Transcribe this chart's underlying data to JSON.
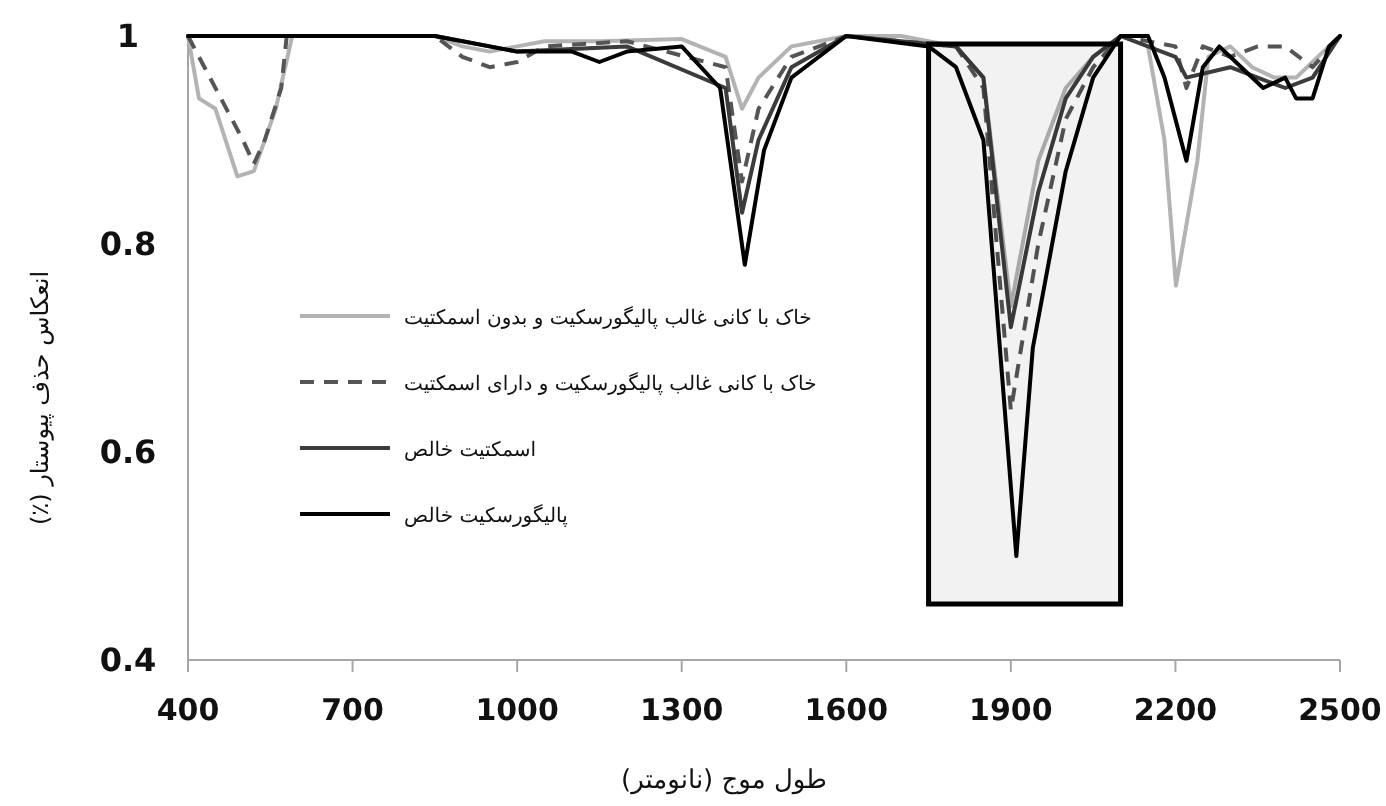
{
  "chart_data": {
    "type": "line",
    "xlabel": "طول موج (نانومتر)",
    "ylabel": "انعکاس حذف پیوستار (٪)",
    "xlim": [
      400,
      2500
    ],
    "xticks": [
      400,
      700,
      1000,
      1300,
      1600,
      1900,
      2200,
      2500
    ],
    "ylim": [
      0.4,
      1
    ],
    "yticks": [
      0.4,
      0.6,
      0.8,
      1
    ],
    "grid": false,
    "legend": "left",
    "bands": [
      {
        "axis": "x",
        "from": 1750,
        "to": 2100,
        "color": "#000000"
      }
    ],
    "series": [
      {
        "name": "خاک با کانی غالب پالیگورسکیت و بدون اسمکتیت",
        "color": "#b3b3b3",
        "line_style": "solid",
        "x": [
          400,
          420,
          450,
          490,
          520,
          560,
          590,
          850,
          900,
          950,
          1000,
          1050,
          1150,
          1300,
          1380,
          1410,
          1440,
          1500,
          1600,
          1700,
          1800,
          1850,
          1900,
          1950,
          2000,
          2050,
          2100,
          2150,
          2180,
          2201,
          2240,
          2260,
          2300,
          2340,
          2380,
          2420,
          2460,
          2500
        ],
        "values": [
          1.0,
          0.94,
          0.93,
          0.865,
          0.87,
          0.93,
          1.0,
          1.0,
          0.99,
          0.985,
          0.99,
          0.995,
          0.995,
          0.997,
          0.98,
          0.93,
          0.96,
          0.99,
          1.0,
          1.0,
          0.99,
          0.96,
          0.74,
          0.88,
          0.95,
          0.98,
          1.0,
          0.99,
          0.9,
          0.76,
          0.88,
          0.98,
          0.99,
          0.97,
          0.96,
          0.96,
          0.98,
          1.0
        ]
      },
      {
        "name": "خاک با کانی غالب پالیگورسکیت و دارای اسمکتیت",
        "color": "#555555",
        "line_style": "dashed",
        "x": [
          400,
          430,
          460,
          500,
          520,
          540,
          570,
          580,
          850,
          900,
          950,
          1000,
          1050,
          1200,
          1380,
          1410,
          1440,
          1500,
          1600,
          1800,
          1850,
          1900,
          1950,
          2000,
          2050,
          2100,
          2200,
          2220,
          2250,
          2300,
          2350,
          2400,
          2450,
          2500
        ],
        "values": [
          1.0,
          0.97,
          0.94,
          0.9,
          0.877,
          0.9,
          0.95,
          1.0,
          1.0,
          0.98,
          0.97,
          0.975,
          0.99,
          0.995,
          0.97,
          0.86,
          0.93,
          0.98,
          1.0,
          0.99,
          0.95,
          0.64,
          0.8,
          0.92,
          0.97,
          1.0,
          0.99,
          0.95,
          0.99,
          0.98,
          0.99,
          0.99,
          0.97,
          1.0
        ]
      },
      {
        "name": "اسمکتیت خالص",
        "color": "#3c3c3c",
        "line_style": "solid",
        "x": [
          400,
          850,
          1000,
          1200,
          1380,
          1410,
          1440,
          1500,
          1600,
          1800,
          1850,
          1900,
          1950,
          2000,
          2050,
          2100,
          2200,
          2220,
          2300,
          2350,
          2400,
          2450,
          2500
        ],
        "values": [
          1.0,
          1.0,
          0.985,
          0.99,
          0.95,
          0.83,
          0.9,
          0.97,
          1.0,
          0.99,
          0.96,
          0.72,
          0.85,
          0.94,
          0.98,
          1.0,
          0.98,
          0.96,
          0.97,
          0.96,
          0.95,
          0.96,
          1.0
        ]
      },
      {
        "name": "پالیگورسکیت خالص",
        "color": "#000000",
        "line_style": "solid",
        "x": [
          400,
          850,
          950,
          1000,
          1100,
          1150,
          1200,
          1300,
          1370,
          1415,
          1450,
          1500,
          1600,
          1750,
          1800,
          1850,
          1880,
          1910,
          1940,
          2000,
          2050,
          2100,
          2150,
          2180,
          2220,
          2250,
          2280,
          2320,
          2360,
          2400,
          2420,
          2450,
          2480,
          2500
        ],
        "values": [
          1.0,
          1.0,
          0.99,
          0.985,
          0.985,
          0.975,
          0.985,
          0.99,
          0.95,
          0.78,
          0.89,
          0.96,
          1.0,
          0.99,
          0.97,
          0.9,
          0.7,
          0.5,
          0.7,
          0.87,
          0.96,
          1.0,
          1.0,
          0.96,
          0.88,
          0.97,
          0.99,
          0.97,
          0.95,
          0.96,
          0.94,
          0.94,
          0.99,
          1.0
        ]
      }
    ]
  }
}
